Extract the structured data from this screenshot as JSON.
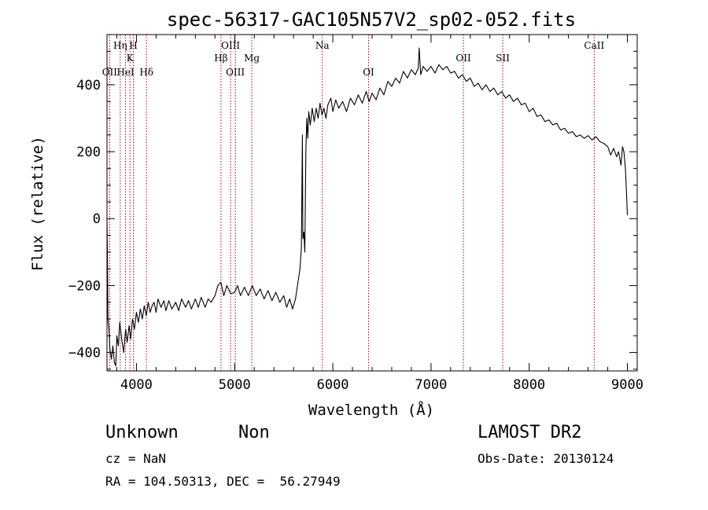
{
  "chart_data": {
    "type": "line",
    "title": "spec-56317-GAC105N57V2_sp02-052.fits",
    "xlabel": "Wavelength (Å)",
    "ylabel": "Flux (relative)",
    "xlim": [
      3700,
      9100
    ],
    "ylim": [
      -455,
      550
    ],
    "x_ticks": [
      4000,
      5000,
      6000,
      7000,
      8000,
      9000
    ],
    "y_ticks": [
      -400,
      -200,
      0,
      200,
      400
    ],
    "series": [
      {
        "color": "#000000",
        "points": [
          [
            3700,
            0
          ],
          [
            3705,
            -120
          ],
          [
            3710,
            -300
          ],
          [
            3720,
            -330
          ],
          [
            3730,
            -390
          ],
          [
            3745,
            -420
          ],
          [
            3760,
            -380
          ],
          [
            3775,
            -430
          ],
          [
            3790,
            -440
          ],
          [
            3800,
            -350
          ],
          [
            3815,
            -380
          ],
          [
            3830,
            -310
          ],
          [
            3850,
            -360
          ],
          [
            3870,
            -400
          ],
          [
            3890,
            -330
          ],
          [
            3905,
            -370
          ],
          [
            3925,
            -320
          ],
          [
            3940,
            -360
          ],
          [
            3960,
            -300
          ],
          [
            3980,
            -330
          ],
          [
            4000,
            -280
          ],
          [
            4020,
            -310
          ],
          [
            4040,
            -270
          ],
          [
            4060,
            -300
          ],
          [
            4080,
            -260
          ],
          [
            4100,
            -290
          ],
          [
            4120,
            -250
          ],
          [
            4140,
            -280
          ],
          [
            4160,
            -260
          ],
          [
            4180,
            -250
          ],
          [
            4200,
            -280
          ],
          [
            4220,
            -240
          ],
          [
            4250,
            -265
          ],
          [
            4280,
            -245
          ],
          [
            4300,
            -275
          ],
          [
            4330,
            -245
          ],
          [
            4360,
            -270
          ],
          [
            4400,
            -250
          ],
          [
            4430,
            -275
          ],
          [
            4460,
            -240
          ],
          [
            4500,
            -265
          ],
          [
            4530,
            -245
          ],
          [
            4560,
            -270
          ],
          [
            4600,
            -240
          ],
          [
            4630,
            -265
          ],
          [
            4660,
            -235
          ],
          [
            4700,
            -265
          ],
          [
            4730,
            -240
          ],
          [
            4760,
            -250
          ],
          [
            4800,
            -230
          ],
          [
            4830,
            -200
          ],
          [
            4860,
            -190
          ],
          [
            4890,
            -230
          ],
          [
            4920,
            -200
          ],
          [
            4960,
            -225
          ],
          [
            5000,
            -220
          ],
          [
            5030,
            -200
          ],
          [
            5060,
            -230
          ],
          [
            5100,
            -205
          ],
          [
            5140,
            -230
          ],
          [
            5180,
            -200
          ],
          [
            5220,
            -230
          ],
          [
            5260,
            -210
          ],
          [
            5300,
            -240
          ],
          [
            5340,
            -215
          ],
          [
            5380,
            -245
          ],
          [
            5420,
            -220
          ],
          [
            5460,
            -250
          ],
          [
            5500,
            -230
          ],
          [
            5530,
            -265
          ],
          [
            5560,
            -240
          ],
          [
            5590,
            -270
          ],
          [
            5620,
            -240
          ],
          [
            5650,
            -180
          ],
          [
            5665,
            -150
          ],
          [
            5680,
            -90
          ],
          [
            5690,
            250
          ],
          [
            5695,
            -60
          ],
          [
            5705,
            -40
          ],
          [
            5715,
            -100
          ],
          [
            5725,
            200
          ],
          [
            5735,
            300
          ],
          [
            5745,
            240
          ],
          [
            5755,
            320
          ],
          [
            5770,
            280
          ],
          [
            5790,
            330
          ],
          [
            5810,
            290
          ],
          [
            5830,
            330
          ],
          [
            5850,
            300
          ],
          [
            5870,
            345
          ],
          [
            5890,
            310
          ],
          [
            5910,
            330
          ],
          [
            5930,
            300
          ],
          [
            5950,
            340
          ],
          [
            5980,
            360
          ],
          [
            6000,
            320
          ],
          [
            6030,
            355
          ],
          [
            6060,
            330
          ],
          [
            6100,
            350
          ],
          [
            6140,
            320
          ],
          [
            6180,
            360
          ],
          [
            6220,
            340
          ],
          [
            6260,
            370
          ],
          [
            6300,
            345
          ],
          [
            6340,
            380
          ],
          [
            6370,
            350
          ],
          [
            6400,
            375
          ],
          [
            6440,
            355
          ],
          [
            6480,
            390
          ],
          [
            6520,
            370
          ],
          [
            6560,
            410
          ],
          [
            6600,
            395
          ],
          [
            6640,
            420
          ],
          [
            6680,
            405
          ],
          [
            6720,
            440
          ],
          [
            6760,
            420
          ],
          [
            6800,
            445
          ],
          [
            6840,
            430
          ],
          [
            6870,
            450
          ],
          [
            6880,
            510
          ],
          [
            6895,
            430
          ],
          [
            6920,
            455
          ],
          [
            6960,
            440
          ],
          [
            7000,
            455
          ],
          [
            7040,
            435
          ],
          [
            7080,
            460
          ],
          [
            7120,
            445
          ],
          [
            7160,
            455
          ],
          [
            7200,
            435
          ],
          [
            7240,
            440
          ],
          [
            7280,
            420
          ],
          [
            7320,
            430
          ],
          [
            7360,
            410
          ],
          [
            7400,
            420
          ],
          [
            7440,
            395
          ],
          [
            7480,
            405
          ],
          [
            7520,
            385
          ],
          [
            7560,
            400
          ],
          [
            7600,
            380
          ],
          [
            7640,
            390
          ],
          [
            7680,
            370
          ],
          [
            7720,
            380
          ],
          [
            7760,
            360
          ],
          [
            7800,
            370
          ],
          [
            7840,
            350
          ],
          [
            7880,
            360
          ],
          [
            7920,
            340
          ],
          [
            7960,
            345
          ],
          [
            8000,
            320
          ],
          [
            8040,
            330
          ],
          [
            8080,
            305
          ],
          [
            8120,
            310
          ],
          [
            8160,
            290
          ],
          [
            8200,
            295
          ],
          [
            8240,
            280
          ],
          [
            8280,
            285
          ],
          [
            8320,
            265
          ],
          [
            8360,
            270
          ],
          [
            8400,
            255
          ],
          [
            8440,
            260
          ],
          [
            8480,
            245
          ],
          [
            8520,
            250
          ],
          [
            8560,
            240
          ],
          [
            8600,
            248
          ],
          [
            8640,
            235
          ],
          [
            8680,
            245
          ],
          [
            8720,
            230
          ],
          [
            8760,
            225
          ],
          [
            8800,
            215
          ],
          [
            8830,
            190
          ],
          [
            8860,
            210
          ],
          [
            8890,
            185
          ],
          [
            8910,
            200
          ],
          [
            8935,
            160
          ],
          [
            8950,
            215
          ],
          [
            8965,
            200
          ],
          [
            8980,
            150
          ],
          [
            8995,
            50
          ],
          [
            9000,
            10
          ]
        ]
      }
    ],
    "line_markers": [
      {
        "label": "OII",
        "x": 3727,
        "row": 3
      },
      {
        "label": "Hη",
        "x": 3835,
        "row": 1
      },
      {
        "label": "HeI",
        "x": 3889,
        "row": 3
      },
      {
        "label": "K",
        "x": 3934,
        "row": 2
      },
      {
        "label": "H",
        "x": 3969,
        "row": 1
      },
      {
        "label": "Hδ",
        "x": 4102,
        "row": 3
      },
      {
        "label": "Hβ",
        "x": 4861,
        "row": 2
      },
      {
        "label": "OIII",
        "x": 4959,
        "row": 1
      },
      {
        "label": "OIII",
        "x": 5007,
        "row": 3
      },
      {
        "label": "Mg",
        "x": 5175,
        "row": 2
      },
      {
        "label": "Na",
        "x": 5893,
        "row": 1
      },
      {
        "label": "OI",
        "x": 6364,
        "row": 3
      },
      {
        "label": "OII",
        "x": 7330,
        "row": 2
      },
      {
        "label": "SII",
        "x": 7731,
        "row": 2
      },
      {
        "label": "CaII",
        "x": 8662,
        "row": 1
      }
    ]
  },
  "footer": {
    "object_class": "Unknown",
    "subclass": "Non",
    "survey": "LAMOST DR2",
    "redshift": "cz = NaN",
    "obs_date": "Obs-Date: 20130124",
    "coordinates": "RA = 104.50313, DEC =  56.27949"
  },
  "colors": {
    "spectrum": "#000000",
    "marker_line": "#b00000",
    "axes": "#000000"
  }
}
